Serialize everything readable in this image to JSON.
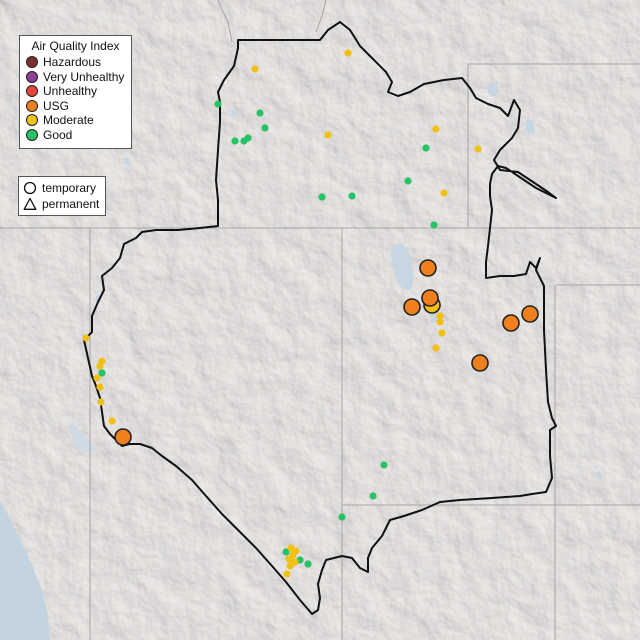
{
  "legend": {
    "title": "Air Quality Index",
    "categories": [
      {
        "key": "hazardous",
        "label": "Hazardous",
        "color": "#7e2e2e"
      },
      {
        "key": "very_unhealthy",
        "label": "Very Unhealthy",
        "color": "#8f3f97"
      },
      {
        "key": "unhealthy",
        "label": "Unhealthy",
        "color": "#e8423c"
      },
      {
        "key": "usg",
        "label": "USG",
        "color": "#f07f1d"
      },
      {
        "key": "moderate",
        "label": "Moderate",
        "color": "#f2c013"
      },
      {
        "key": "good",
        "label": "Good",
        "color": "#27c265"
      }
    ]
  },
  "monitor_types": {
    "temporary_label": "temporary",
    "permanent_label": "permanent",
    "temporary_icon": "circle-icon",
    "permanent_icon": "triangle-icon"
  }
}
